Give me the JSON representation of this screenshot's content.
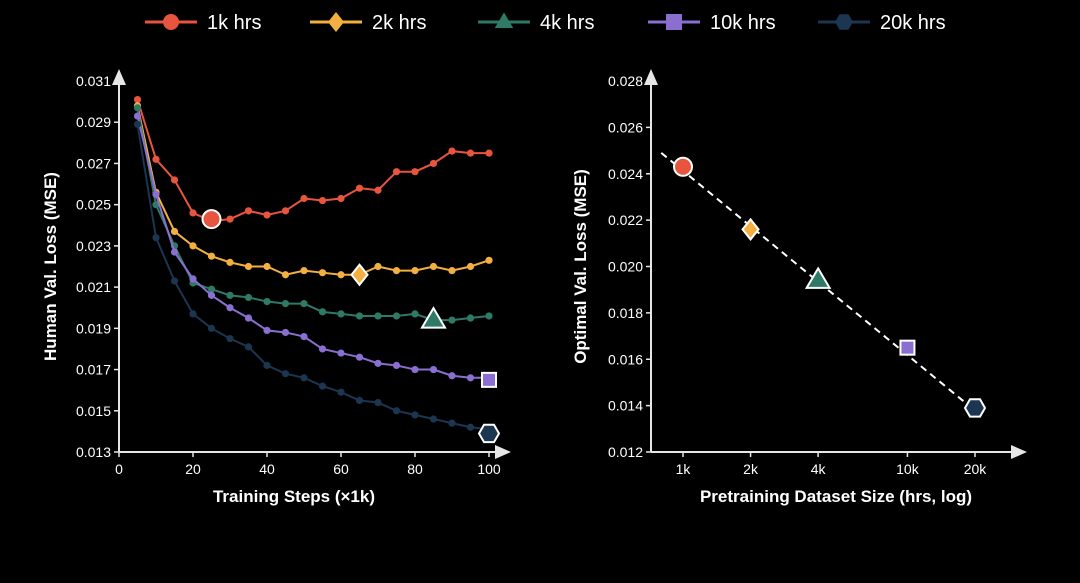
{
  "legend": [
    {
      "label": "1k hrs",
      "color": "#e8553e",
      "marker": "circle"
    },
    {
      "label": "2k hrs",
      "color": "#f3b041",
      "marker": "diamond"
    },
    {
      "label": "4k hrs",
      "color": "#2f7a66",
      "marker": "triangle"
    },
    {
      "label": "10k hrs",
      "color": "#8a6fd1",
      "marker": "square"
    },
    {
      "label": "20k hrs",
      "color": "#1c3550",
      "marker": "hexagon"
    }
  ],
  "chart_data": [
    {
      "type": "line",
      "xlabel": "Training Steps (×1k)",
      "ylabel": "Human Val. Loss (MSE)",
      "xlim": [
        0,
        100
      ],
      "ylim": [
        0.013,
        0.031
      ],
      "x_ticks": [
        0,
        20,
        40,
        60,
        80,
        100
      ],
      "y_ticks": [
        0.013,
        0.015,
        0.017,
        0.019,
        0.021,
        0.023,
        0.025,
        0.027,
        0.029,
        0.031
      ],
      "grid": false,
      "x": [
        5,
        10,
        15,
        20,
        25,
        30,
        35,
        40,
        45,
        50,
        55,
        60,
        65,
        70,
        75,
        80,
        85,
        90,
        95,
        100
      ],
      "series": [
        {
          "name": "1k hrs",
          "color": "#e8553e",
          "marker": "circle",
          "values": [
            0.0301,
            0.0272,
            0.0262,
            0.0246,
            0.0242,
            0.0243,
            0.0247,
            0.0245,
            0.0247,
            0.0253,
            0.0252,
            0.0253,
            0.0258,
            0.0257,
            0.0266,
            0.0266,
            0.027,
            0.0276,
            0.0275,
            0.0275
          ],
          "optimum": {
            "x": 25,
            "y": 0.0243
          }
        },
        {
          "name": "2k hrs",
          "color": "#f3b041",
          "marker": "diamond",
          "values": [
            0.0298,
            0.0256,
            0.0237,
            0.023,
            0.0225,
            0.0222,
            0.022,
            0.022,
            0.0216,
            0.0218,
            0.0217,
            0.0216,
            0.0216,
            0.022,
            0.0218,
            0.0218,
            0.022,
            0.0218,
            0.022,
            0.0223
          ],
          "optimum": {
            "x": 65,
            "y": 0.0216
          }
        },
        {
          "name": "4k hrs",
          "color": "#2f7a66",
          "marker": "triangle",
          "values": [
            0.0297,
            0.025,
            0.023,
            0.0212,
            0.0209,
            0.0206,
            0.0205,
            0.0203,
            0.0202,
            0.0202,
            0.0198,
            0.0197,
            0.0196,
            0.0196,
            0.0196,
            0.0197,
            0.0194,
            0.0194,
            0.0195,
            0.0196
          ],
          "optimum": {
            "x": 85,
            "y": 0.0194
          }
        },
        {
          "name": "10k hrs",
          "color": "#8a6fd1",
          "marker": "square",
          "values": [
            0.0293,
            0.0255,
            0.0227,
            0.0214,
            0.0206,
            0.02,
            0.0195,
            0.0189,
            0.0188,
            0.0186,
            0.018,
            0.0178,
            0.0176,
            0.0173,
            0.0172,
            0.017,
            0.017,
            0.0167,
            0.0166,
            0.0166
          ],
          "optimum": {
            "x": 100,
            "y": 0.0165
          }
        },
        {
          "name": "20k hrs",
          "color": "#1c3550",
          "marker": "hexagon",
          "values": [
            0.0289,
            0.0234,
            0.0213,
            0.0197,
            0.019,
            0.0185,
            0.0181,
            0.0172,
            0.0168,
            0.0166,
            0.0162,
            0.0159,
            0.0155,
            0.0154,
            0.015,
            0.0148,
            0.0146,
            0.0144,
            0.0142,
            0.0141
          ],
          "optimum": {
            "x": 100,
            "y": 0.0139
          }
        }
      ]
    },
    {
      "type": "scatter",
      "xlabel": "Pretraining Dataset Size (hrs, log)",
      "ylabel": "Optimal Val. Loss (MSE)",
      "x_scale": "log",
      "xlim": [
        700,
        30000
      ],
      "ylim": [
        0.012,
        0.028
      ],
      "x_tick_values": [
        1000,
        2000,
        4000,
        10000,
        20000
      ],
      "x_tick_labels": [
        "1k",
        "2k",
        "4k",
        "10k",
        "20k"
      ],
      "y_ticks": [
        0.012,
        0.014,
        0.016,
        0.018,
        0.02,
        0.022,
        0.024,
        0.026,
        0.028
      ],
      "grid": false,
      "points": [
        {
          "name": "1k hrs",
          "x": 1000,
          "y": 0.0243,
          "color": "#e8553e",
          "marker": "circle"
        },
        {
          "name": "2k hrs",
          "x": 2000,
          "y": 0.0216,
          "color": "#f3b041",
          "marker": "diamond"
        },
        {
          "name": "4k hrs",
          "x": 4000,
          "y": 0.0194,
          "color": "#2f7a66",
          "marker": "triangle"
        },
        {
          "name": "10k hrs",
          "x": 10000,
          "y": 0.0165,
          "color": "#8a6fd1",
          "marker": "square"
        },
        {
          "name": "20k hrs",
          "x": 20000,
          "y": 0.0139,
          "color": "#1c3550",
          "marker": "hexagon"
        }
      ],
      "fit_line": {
        "x": [
          800,
          20500
        ],
        "y": [
          0.0249,
          0.0137
        ],
        "style": "dashed",
        "color": "#ffffff"
      }
    }
  ]
}
